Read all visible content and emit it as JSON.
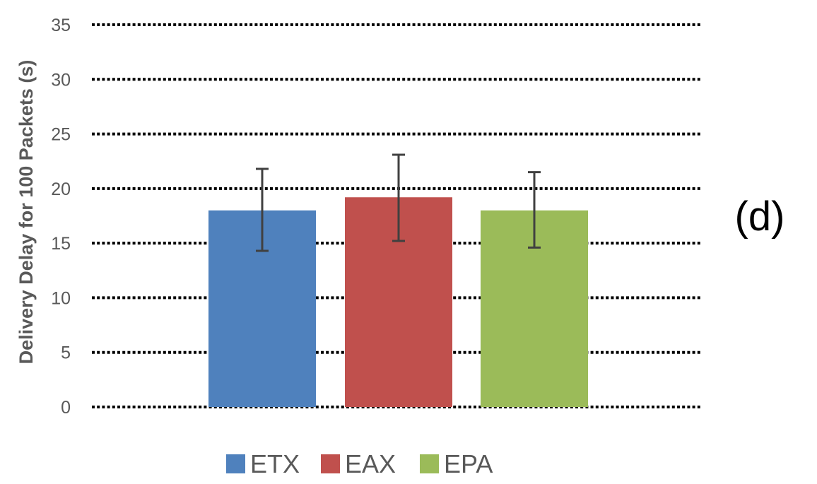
{
  "panel_label": "(d)",
  "chart_data": {
    "type": "bar",
    "title": "",
    "xlabel": "",
    "ylabel": "Delivery Delay for 100 Packets (s)",
    "ylim": [
      0,
      35
    ],
    "yticks": [
      0,
      5,
      10,
      15,
      20,
      25,
      30,
      35
    ],
    "grid": true,
    "legend_position": "bottom",
    "series": [
      {
        "name": "ETX",
        "value": 18.0,
        "error_low": 14.3,
        "error_high": 21.8,
        "color": "#4f81bd"
      },
      {
        "name": "EAX",
        "value": 19.2,
        "error_low": 15.2,
        "error_high": 23.1,
        "color": "#c0504d"
      },
      {
        "name": "EPA",
        "value": 18.0,
        "error_low": 14.6,
        "error_high": 21.5,
        "color": "#9bbb59"
      }
    ]
  }
}
